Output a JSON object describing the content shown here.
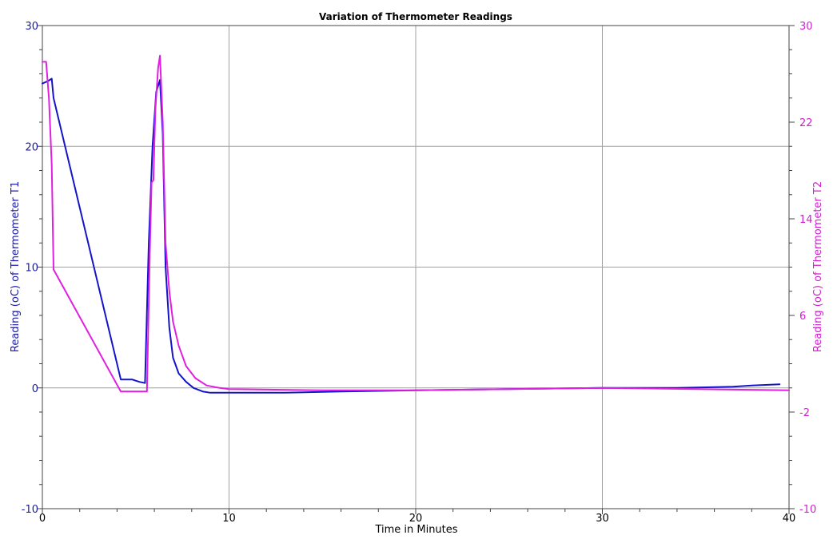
{
  "chart_data": {
    "type": "line",
    "title": "Variation of Thermometer Readings",
    "xlabel": "Time in Minutes",
    "ylabel": "Reading (oC) of Thermometer T1",
    "y2label": "Reading (oC) of Thermometer T2",
    "xlim": [
      0,
      40
    ],
    "ylim": [
      -10,
      30
    ],
    "y2lim": [
      -10,
      30
    ],
    "x_ticks": [
      "0",
      "10",
      "20",
      "30",
      "40"
    ],
    "y_ticks": [
      "-10",
      "0",
      "10",
      "20",
      "30"
    ],
    "y2_ticks": [
      "-10",
      "-2",
      "6",
      "14",
      "22",
      "30"
    ],
    "grid": true,
    "series": [
      {
        "name": "",
        "axis": "left",
        "color": "#1414c8",
        "x": [
          0,
          0.3,
          0.5,
          0.6,
          4.2,
          4.8,
          5.2,
          5.5,
          5.7,
          5.9,
          6.1,
          6.3,
          6.45,
          6.6,
          6.8,
          7.0,
          7.3,
          7.7,
          8.1,
          8.6,
          9.0,
          10,
          13,
          16,
          20,
          25,
          30,
          34,
          37,
          38,
          39.5
        ],
        "y": [
          25.2,
          25.4,
          25.6,
          24.0,
          0.7,
          0.7,
          0.5,
          0.4,
          12.0,
          20.0,
          24.5,
          25.5,
          21.0,
          10.0,
          5.0,
          2.5,
          1.2,
          0.5,
          0.0,
          -0.3,
          -0.4,
          -0.4,
          -0.4,
          -0.3,
          -0.2,
          -0.1,
          0.0,
          0.0,
          0.1,
          0.2,
          0.3
        ]
      },
      {
        "name": "",
        "axis": "right",
        "color": "#e020e0",
        "x": [
          0,
          0.2,
          0.35,
          0.5,
          0.6,
          4.2,
          4.5,
          5.6,
          5.75,
          5.85,
          5.95,
          6.05,
          6.2,
          6.3,
          6.45,
          6.6,
          6.8,
          7.0,
          7.3,
          7.7,
          8.2,
          8.8,
          9.5,
          10,
          15,
          20,
          25,
          30,
          40
        ],
        "y": [
          27.0,
          27.0,
          24.0,
          18.5,
          9.8,
          -0.3,
          -0.3,
          -0.3,
          11.0,
          17.0,
          17.2,
          23.0,
          26.5,
          27.5,
          22.0,
          12.0,
          8.0,
          5.5,
          3.5,
          1.8,
          0.8,
          0.2,
          0.0,
          -0.1,
          -0.2,
          -0.2,
          -0.1,
          0.0,
          -0.2
        ]
      }
    ]
  }
}
